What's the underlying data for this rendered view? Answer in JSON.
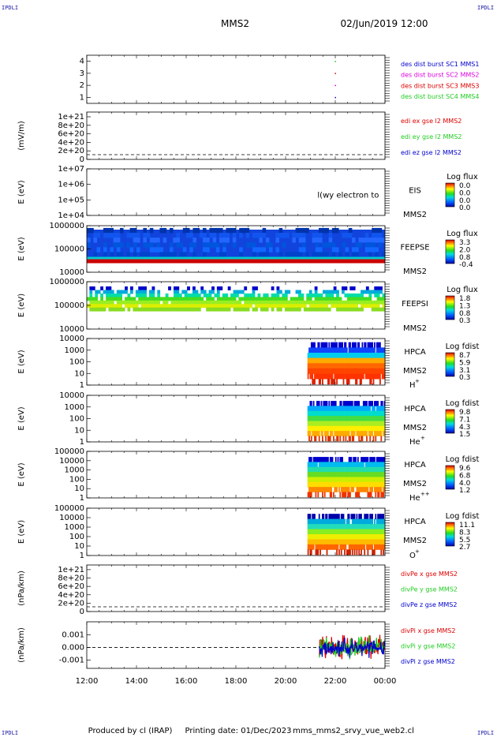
{
  "header": {
    "mission": "MMS2",
    "datetime": "02/Jun/2019 12:00",
    "corner_mark": "IPDLI"
  },
  "footer": {
    "producer": "Produced by cl (IRAP)",
    "printing_date": "Printing date: 01/Dec/2023",
    "script_name": "mms_mms2_srvy_vue_web2.cl"
  },
  "colors": {
    "blue": "#0000cc",
    "magenta": "#dd00dd",
    "red": "#dd0000",
    "green": "#22cc22",
    "ink": "#000000"
  },
  "chart_data": [
    {
      "type": "scatter",
      "name": "burst-availability",
      "xrange": [
        "12:00",
        "00:00"
      ],
      "ylim": [
        0.5,
        4.5
      ],
      "yticks": [
        "1",
        "2",
        "3",
        "4"
      ],
      "ylabel": "",
      "points": [
        {
          "x": "22:00",
          "y": 4
        },
        {
          "x": "22:00",
          "y": 3
        },
        {
          "x": "22:00",
          "y": 2
        },
        {
          "x": "22:00",
          "y": 1
        }
      ],
      "legend": [
        {
          "label": "des dist burst SC1 MMS1",
          "color": "#0000cc"
        },
        {
          "label": "des dist burst SC2 MMS2",
          "color": "#dd00dd"
        },
        {
          "label": "des dist burst SC3 MMS3",
          "color": "#dd0000"
        },
        {
          "label": "des dist burst SC4 MMS4",
          "color": "#22cc22"
        }
      ]
    },
    {
      "type": "line",
      "name": "edi-e-field",
      "ylabel": "(mV/m)",
      "yticks": [
        "1e+21",
        "8e+20",
        "6e+20",
        "4e+20",
        "2e+20",
        "0"
      ],
      "legend": [
        {
          "label": "edi ex gse l2 MMS2",
          "color": "#dd0000"
        },
        {
          "label": "edi ey gse l2 MMS2",
          "color": "#22cc22"
        },
        {
          "label": "edi ez gse l2 MMS2",
          "color": "#0000cc"
        }
      ]
    },
    {
      "type": "heatmap",
      "name": "eis",
      "ylabel": "E (eV)",
      "yticks": [
        "1e+07",
        "1e+06",
        "1e+05",
        "1e+04"
      ],
      "instrument": "EIS",
      "sc": "MMS2",
      "overlay_text": "l(wy electron to",
      "colorbar": {
        "title": "Log flux",
        "ticks": [
          "0.0",
          "0.0",
          "0.0",
          "0.0"
        ]
      }
    },
    {
      "type": "heatmap",
      "name": "feeps-electron",
      "ylabel": "E (eV)",
      "yticks": [
        "1000000",
        "100000",
        "10000"
      ],
      "instrument": "FEEPSE",
      "sc": "MMS2",
      "colorbar": {
        "title": "Log flux",
        "ticks": [
          "3.3",
          "2.0",
          "0.8",
          "-0.4"
        ]
      }
    },
    {
      "type": "heatmap",
      "name": "feeps-ion",
      "ylabel": "E (eV)",
      "yticks": [
        "1000000",
        "100000",
        "10000"
      ],
      "instrument": "FEEPSI",
      "sc": "MMS2",
      "colorbar": {
        "title": "Log flux",
        "ticks": [
          "1.8",
          "1.3",
          "0.8",
          "0.3"
        ]
      }
    },
    {
      "type": "heatmap",
      "name": "hpca-h",
      "ylabel": "E (eV)",
      "yticks": [
        "10000",
        "1000",
        "100",
        "10",
        "1"
      ],
      "instrument": "HPCA",
      "sc": "MMS2",
      "species": "H",
      "charge": "+",
      "colorbar": {
        "title": "Log fdist",
        "ticks": [
          "8.7",
          "5.9",
          "3.1",
          "0.3"
        ]
      }
    },
    {
      "type": "heatmap",
      "name": "hpca-he",
      "ylabel": "E (eV)",
      "yticks": [
        "10000",
        "1000",
        "100",
        "10",
        "1"
      ],
      "instrument": "HPCA",
      "sc": "MMS2",
      "species": "He",
      "charge": "+",
      "colorbar": {
        "title": "Log fdist",
        "ticks": [
          "9.8",
          "7.1",
          "4.3",
          "1.5"
        ]
      }
    },
    {
      "type": "heatmap",
      "name": "hpca-he2",
      "ylabel": "E (eV)",
      "yticks": [
        "100000",
        "10000",
        "1000",
        "100",
        "10",
        "1"
      ],
      "instrument": "HPCA",
      "sc": "MMS2",
      "species": "He",
      "charge": "++",
      "colorbar": {
        "title": "Log fdist",
        "ticks": [
          "9.6",
          "6.8",
          "4.0",
          "1.2"
        ]
      }
    },
    {
      "type": "heatmap",
      "name": "hpca-o",
      "ylabel": "E (eV)",
      "yticks": [
        "100000",
        "10000",
        "1000",
        "100",
        "10",
        "1"
      ],
      "instrument": "HPCA",
      "sc": "MMS2",
      "species": "O",
      "charge": "+",
      "colorbar": {
        "title": "Log fdist",
        "ticks": [
          "11.1",
          "8.3",
          "5.5",
          "2.7"
        ]
      }
    },
    {
      "type": "line",
      "name": "divpe",
      "ylabel": "(nPa/km)",
      "yticks": [
        "1e+21",
        "8e+20",
        "6e+20",
        "4e+20",
        "2e+20",
        "0"
      ],
      "legend": [
        {
          "label": "divPe x gse MMS2",
          "color": "#dd0000"
        },
        {
          "label": "divPe y gse MMS2",
          "color": "#22cc22"
        },
        {
          "label": "divPe z gse MMS2",
          "color": "#0000cc"
        }
      ]
    },
    {
      "type": "line",
      "name": "divpi",
      "ylabel": "(nPa/km)",
      "yticks": [
        "0.001",
        "0.000",
        "-0.001"
      ],
      "legend": [
        {
          "label": "divPi x gse MMS2",
          "color": "#dd0000"
        },
        {
          "label": "divPi y gse MMS2",
          "color": "#22cc22"
        },
        {
          "label": "divPi z gse MMS2",
          "color": "#0000cc"
        }
      ]
    }
  ],
  "time_axis": {
    "ticks": [
      "12:00",
      "14:00",
      "16:00",
      "18:00",
      "20:00",
      "22:00",
      "00:00"
    ]
  }
}
